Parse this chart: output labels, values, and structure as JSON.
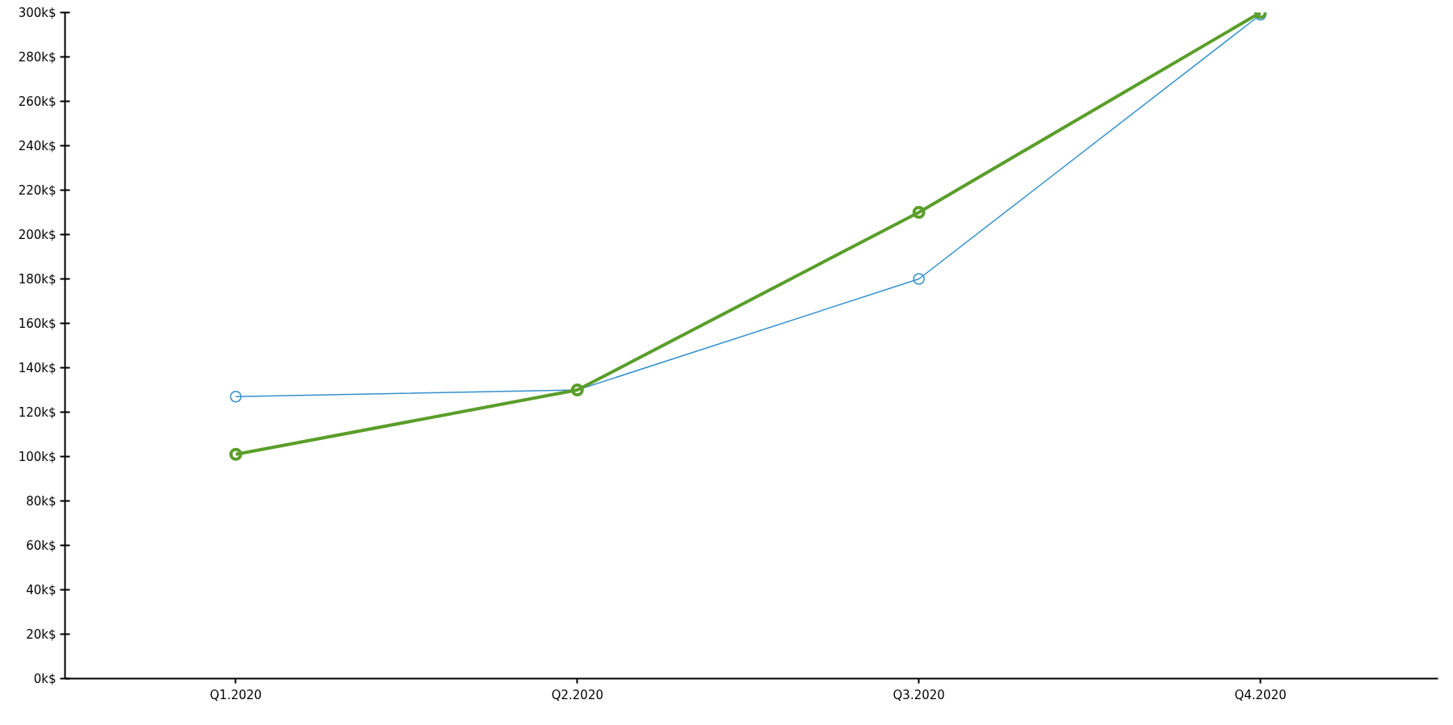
{
  "chart_data": {
    "type": "line",
    "categories": [
      "Q1.2020",
      "Q2.2020",
      "Q3.2020",
      "Q4.2020"
    ],
    "series": [
      {
        "color": "#3391cf",
        "values": [
          127,
          130,
          180,
          299
        ]
      },
      {
        "color": "#5a9e2a",
        "values": [
          101,
          130,
          210,
          300
        ]
      }
    ],
    "ylim": [
      0,
      300
    ],
    "yticks": [
      {
        "value": 0,
        "label": "0k$"
      },
      {
        "value": 20,
        "label": "20k$"
      },
      {
        "value": 40,
        "label": "40k$"
      },
      {
        "value": 60,
        "label": "60k$"
      },
      {
        "value": 80,
        "label": "80k$"
      },
      {
        "value": 100,
        "label": "100k$"
      },
      {
        "value": 120,
        "label": "120k$"
      },
      {
        "value": 140,
        "label": "140k$"
      },
      {
        "value": 160,
        "label": "160k$"
      },
      {
        "value": 180,
        "label": "180k$"
      },
      {
        "value": 200,
        "label": "200k$"
      },
      {
        "value": 220,
        "label": "220k$"
      },
      {
        "value": 240,
        "label": "240k$"
      },
      {
        "value": 260,
        "label": "260k$"
      },
      {
        "value": 280,
        "label": "280k$"
      },
      {
        "value": 300,
        "label": "300k$"
      }
    ],
    "grid": false,
    "marker": "circle",
    "line_style": "solid"
  }
}
